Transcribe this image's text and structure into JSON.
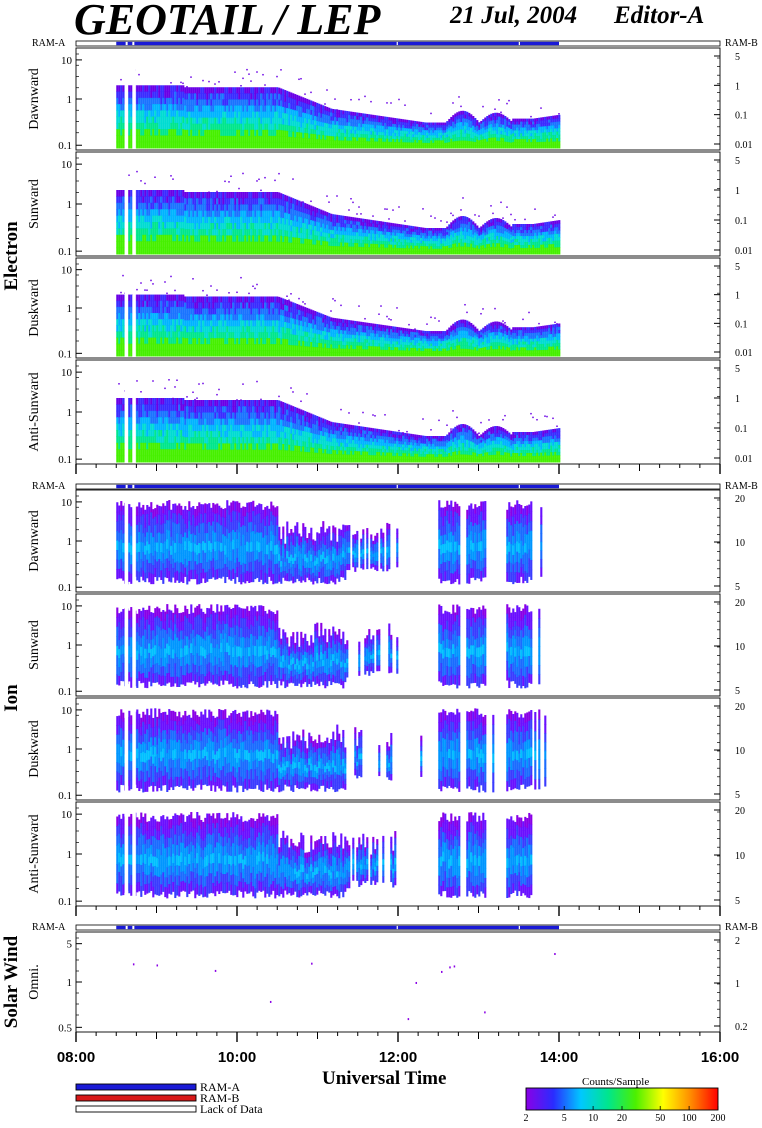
{
  "header": {
    "title": "GEOTAIL / LEP",
    "date": "21 Jul, 2004",
    "editor": "Editor-A"
  },
  "chart_data": {
    "type": "heatmap",
    "x_axis": {
      "label": "Universal Time",
      "range": [
        "08:00",
        "16:00"
      ],
      "ticks": [
        "08:00",
        "10:00",
        "12:00",
        "14:00",
        "16:00"
      ],
      "data_coverage": [
        "08:30",
        "14:00"
      ]
    },
    "mode_bar": {
      "left_label": "RAM-A",
      "right_label": "RAM-B",
      "gaps": [
        "08:37",
        "08:42",
        "11:59",
        "13:30"
      ]
    },
    "groups": [
      {
        "name": "Electron",
        "mode_bar": true,
        "panels": [
          {
            "label": "Dawnward",
            "left_ticks": [
              "10",
              "1",
              "0.1"
            ],
            "right_ticks": [
              "5",
              "1",
              "0.1",
              "0.01"
            ]
          },
          {
            "label": "Sunward",
            "left_ticks": [
              "10",
              "1",
              "0.1"
            ],
            "right_ticks": [
              "5",
              "1",
              "0.1",
              "0.01"
            ]
          },
          {
            "label": "Duskward",
            "left_ticks": [
              "10",
              "1",
              "0.1"
            ],
            "right_ticks": [
              "5",
              "1",
              "0.1",
              "0.01"
            ]
          },
          {
            "label": "Anti-Sunward",
            "left_ticks": [
              "10",
              "1",
              "0.1"
            ],
            "right_ticks": [
              "5",
              "1",
              "0.1",
              "0.01"
            ]
          }
        ]
      },
      {
        "name": "Ion",
        "mode_bar": true,
        "panels": [
          {
            "label": "Dawnward",
            "left_ticks": [
              "10",
              "1",
              "0.1"
            ],
            "right_ticks": [
              "20",
              "10",
              "5"
            ]
          },
          {
            "label": "Sunward",
            "left_ticks": [
              "10",
              "1",
              "0.1"
            ],
            "right_ticks": [
              "20",
              "10",
              "5"
            ]
          },
          {
            "label": "Duskward",
            "left_ticks": [
              "10",
              "1",
              "0.1"
            ],
            "right_ticks": [
              "20",
              "10",
              "5"
            ]
          },
          {
            "label": "Anti-Sunward",
            "left_ticks": [
              "10",
              "1",
              "0.1"
            ],
            "right_ticks": [
              "20",
              "10",
              "5"
            ]
          }
        ]
      },
      {
        "name": "Solar Wind",
        "mode_bar": true,
        "panels": [
          {
            "label": "Omni.",
            "left_ticks": [
              "5",
              "1",
              "0.5"
            ],
            "right_ticks": [
              "2",
              "1",
              "0.2"
            ]
          }
        ]
      }
    ],
    "legend": [
      {
        "label": "RAM-A",
        "color": "#1a1ad6"
      },
      {
        "label": "RAM-B",
        "color": "#d81818"
      },
      {
        "label": "Lack of Data",
        "color": "#ffffff"
      }
    ],
    "colorbar": {
      "title": "Counts/Sample",
      "ticks": [
        "2",
        "5",
        "10",
        "20",
        "50",
        "100",
        "200"
      ],
      "scale": "log",
      "range": [
        2,
        200
      ],
      "colors": [
        "#8a00e6",
        "#2a2cff",
        "#00c8ff",
        "#00e68c",
        "#4cf000",
        "#ffff00",
        "#ff8c00",
        "#ff0000"
      ]
    }
  }
}
